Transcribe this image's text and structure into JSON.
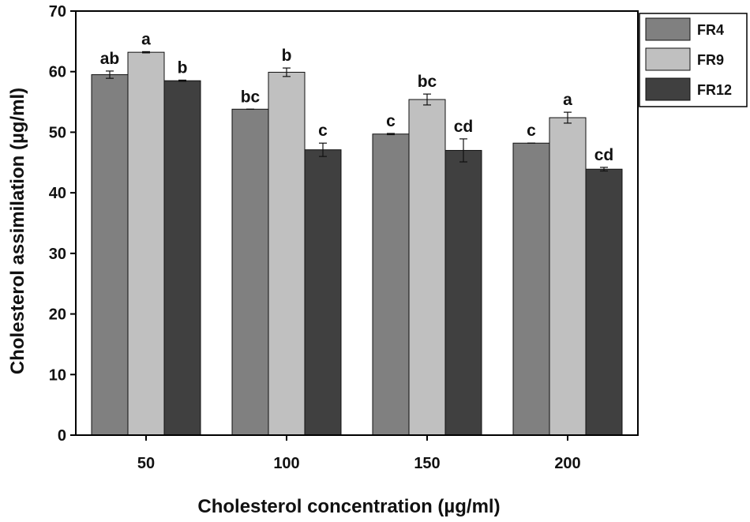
{
  "chart_data": {
    "type": "bar",
    "title": "",
    "xlabel": "Cholesterol concentration (µg/ml)",
    "ylabel": "Cholesterol assimilation (µg/ml)",
    "ylim": [
      0,
      70
    ],
    "yticks": [
      0,
      10,
      20,
      30,
      40,
      50,
      60,
      70
    ],
    "categories": [
      "50",
      "100",
      "150",
      "200"
    ],
    "legend_position": "top-right",
    "series": [
      {
        "name": "FR4",
        "color": "#808080",
        "values": [
          59.5,
          53.8,
          49.7,
          48.2
        ],
        "errors": [
          0.6,
          0.0,
          0.1,
          0.0
        ],
        "labels": [
          "ab",
          "bc",
          "c",
          "c"
        ]
      },
      {
        "name": "FR9",
        "color": "#c0c0c0",
        "values": [
          63.2,
          59.9,
          55.4,
          52.4
        ],
        "errors": [
          0.1,
          0.7,
          0.9,
          0.9
        ],
        "labels": [
          "a",
          "b",
          "bc",
          "a"
        ]
      },
      {
        "name": "FR12",
        "color": "#404040",
        "values": [
          58.5,
          47.1,
          47.0,
          43.9
        ],
        "errors": [
          0.1,
          1.1,
          1.9,
          0.3
        ],
        "labels": [
          "b",
          "c",
          "cd",
          "cd"
        ]
      }
    ]
  }
}
